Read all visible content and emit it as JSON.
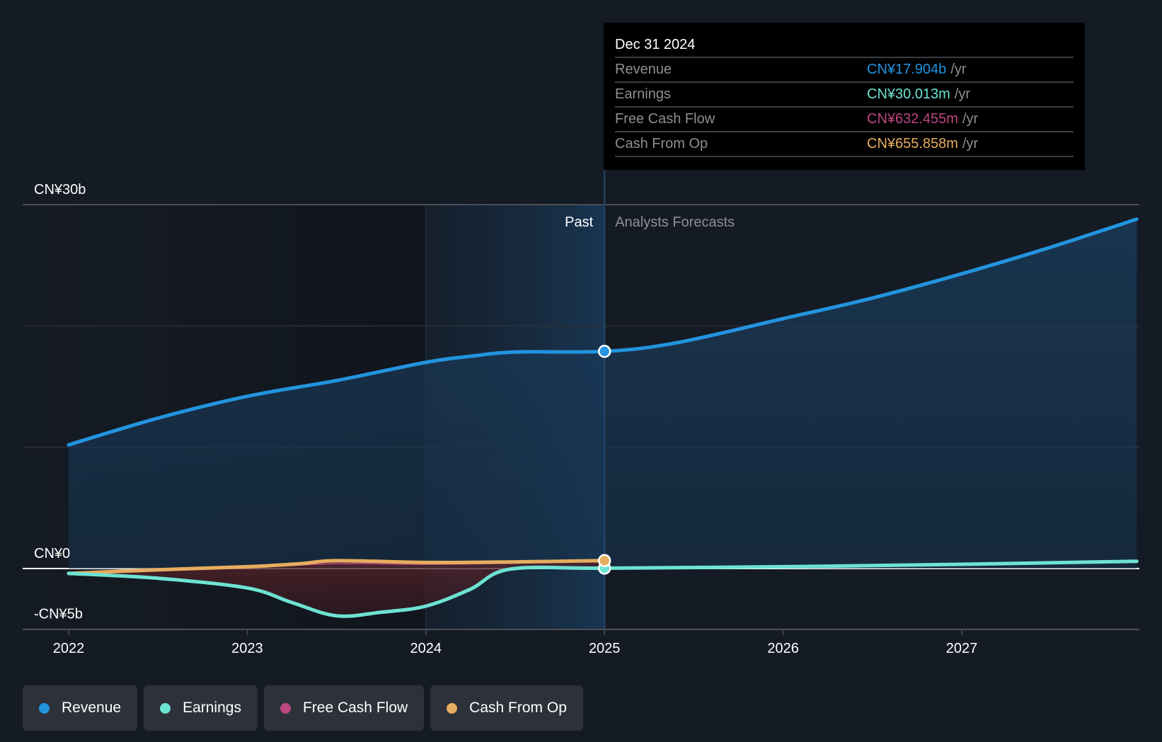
{
  "chart_data": {
    "type": "area",
    "title": "",
    "xlabel": "",
    "ylabel": "",
    "currency_prefix": "CN¥",
    "x_ticks": [
      "2022",
      "2023",
      "2024",
      "2025",
      "2026",
      "2027"
    ],
    "x_range": [
      2021.98,
      2027.98
    ],
    "y_ticks": [
      {
        "value": 30,
        "label": "CN¥30b"
      },
      {
        "value": 20,
        "label": ""
      },
      {
        "value": 10,
        "label": ""
      },
      {
        "value": 0,
        "label": "CN¥0"
      },
      {
        "value": -5,
        "label": "-CN¥5b"
      }
    ],
    "ylim": [
      -5,
      30
    ],
    "y_unit": "billions CNY",
    "past_label": "Past",
    "forecast_label": "Analysts Forecasts",
    "divider_x": 2025.0,
    "highlight_start_x": 2024.0,
    "grid": true,
    "legend_position": "bottom-left",
    "series": [
      {
        "name": "Revenue",
        "color": "#2394df",
        "fill": true,
        "points": [
          [
            2022.0,
            10.2
          ],
          [
            2022.5,
            12.4
          ],
          [
            2023.0,
            14.2
          ],
          [
            2023.5,
            15.5
          ],
          [
            2024.0,
            17.0
          ],
          [
            2024.25,
            17.5
          ],
          [
            2024.5,
            17.85
          ],
          [
            2025.0,
            17.904
          ],
          [
            2025.4,
            18.6
          ],
          [
            2026.0,
            20.6
          ],
          [
            2026.5,
            22.3
          ],
          [
            2027.0,
            24.3
          ],
          [
            2027.5,
            26.5
          ],
          [
            2027.98,
            28.8
          ]
        ]
      },
      {
        "name": "Earnings",
        "color": "#6de3d3",
        "fill": false,
        "points": [
          [
            2022.0,
            -0.4
          ],
          [
            2022.5,
            -0.8
          ],
          [
            2023.0,
            -1.6
          ],
          [
            2023.25,
            -2.8
          ],
          [
            2023.5,
            -3.9
          ],
          [
            2023.75,
            -3.6
          ],
          [
            2024.0,
            -3.1
          ],
          [
            2024.25,
            -1.7
          ],
          [
            2024.47,
            -0.05
          ],
          [
            2025.0,
            0.03
          ],
          [
            2026.0,
            0.15
          ],
          [
            2027.0,
            0.35
          ],
          [
            2027.98,
            0.6
          ]
        ]
      },
      {
        "name": "Free Cash Flow",
        "color": "#bd4882",
        "fill": true,
        "points": [
          [
            2022.0,
            -0.5
          ],
          [
            2022.5,
            -0.2
          ],
          [
            2023.0,
            0.1
          ],
          [
            2023.5,
            0.4
          ],
          [
            2024.0,
            0.35
          ],
          [
            2024.5,
            0.45
          ],
          [
            2025.0,
            0.632
          ]
        ]
      },
      {
        "name": "Cash From Op",
        "color": "#e6ad5e",
        "fill": false,
        "points": [
          [
            2022.0,
            -0.4
          ],
          [
            2022.5,
            -0.1
          ],
          [
            2023.0,
            0.15
          ],
          [
            2023.3,
            0.4
          ],
          [
            2023.5,
            0.65
          ],
          [
            2024.0,
            0.5
          ],
          [
            2024.5,
            0.55
          ],
          [
            2025.0,
            0.656
          ]
        ]
      }
    ]
  },
  "tooltip": {
    "date": "Dec 31 2024",
    "rows": [
      {
        "name": "Revenue",
        "value": "CN¥17.904b",
        "unit": "/yr",
        "color": "#2394df"
      },
      {
        "name": "Earnings",
        "value": "CN¥30.013m",
        "unit": "/yr",
        "color": "#6de3d3"
      },
      {
        "name": "Free Cash Flow",
        "value": "CN¥632.455m",
        "unit": "/yr",
        "color": "#bd4882"
      },
      {
        "name": "Cash From Op",
        "value": "CN¥655.858m",
        "unit": "/yr",
        "color": "#e6ad5e"
      }
    ]
  },
  "legend": [
    {
      "label": "Revenue",
      "color": "#2394df"
    },
    {
      "label": "Earnings",
      "color": "#6de3d3"
    },
    {
      "label": "Free Cash Flow",
      "color": "#bd4882"
    },
    {
      "label": "Cash From Op",
      "color": "#e6ad5e"
    }
  ]
}
